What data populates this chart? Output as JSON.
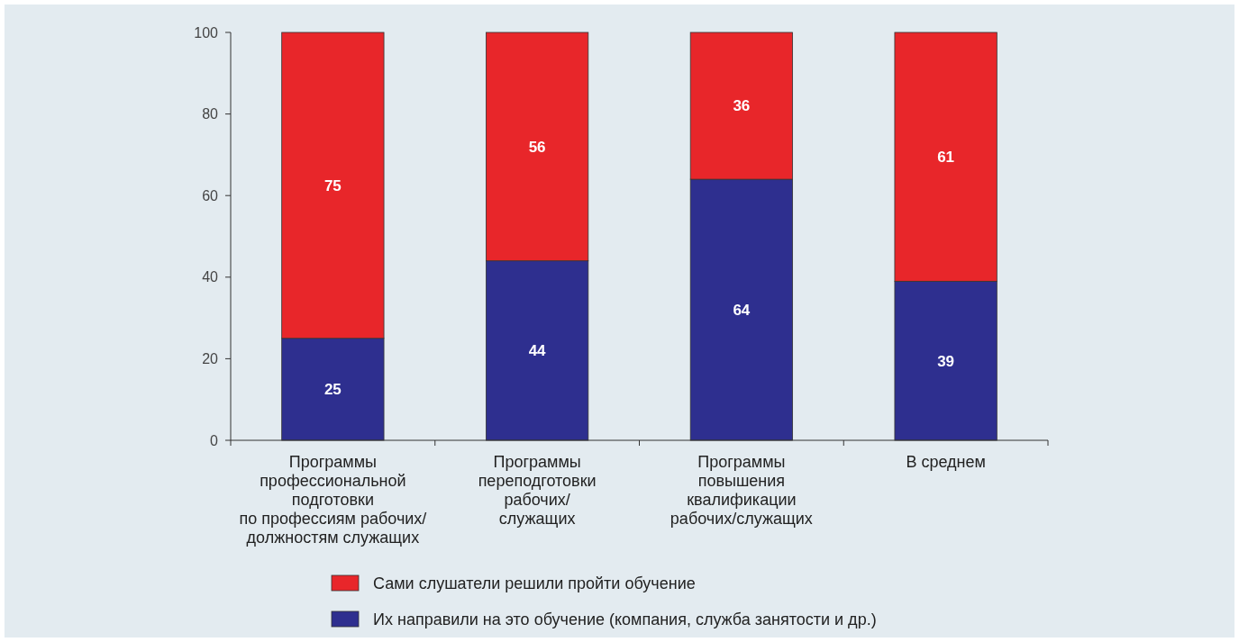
{
  "chart_data": {
    "type": "bar",
    "stacked": true,
    "categories": [
      "Программы\nпрофессиональной\nподготовки\nпо профессиям рабочих/\nдолжностям служащих",
      "Программы\nпереподготовки\nрабочих/\nслужащих",
      "Программы\nповышения\nквалификации\nрабочих/служащих",
      "В среднем"
    ],
    "series": [
      {
        "name": "Их направили на это обучение (компания, служба занятости и др.)",
        "color": "#2e2f8f",
        "values": [
          25,
          44,
          64,
          39
        ]
      },
      {
        "name": "Сами слушатели решили пройти обучение",
        "color": "#e8262a",
        "values": [
          75,
          56,
          36,
          61
        ]
      }
    ],
    "ylim": [
      0,
      100
    ],
    "yticks": [
      0,
      20,
      40,
      60,
      80,
      100
    ],
    "data_labels": true,
    "legend": "bottom",
    "grid": false
  }
}
